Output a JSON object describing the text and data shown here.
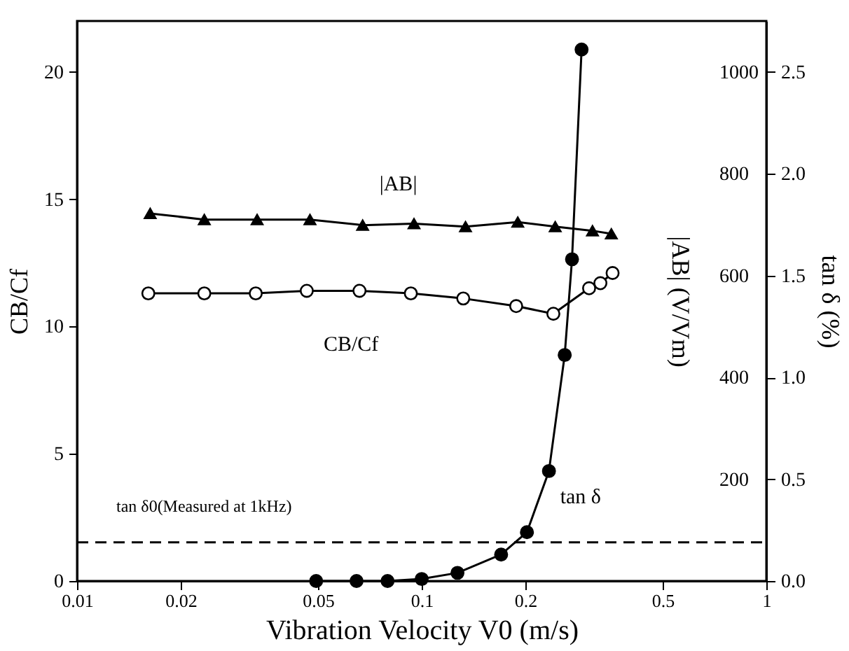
{
  "chart_data": {
    "type": "line",
    "xlabel": "Vibration Velocity V0 (m/s)",
    "ylabel": "CB/Cf",
    "y2label": "|AB| (V/Vm)",
    "y3label": "tan δ (%)",
    "log": "x",
    "grid": false,
    "line_style": "solid",
    "xlim": [
      0.01,
      1
    ],
    "xticks": [
      0.01,
      0.02,
      0.05,
      0.1,
      0.2,
      0.5,
      1
    ],
    "ylim": [
      0,
      22
    ],
    "yticks": [
      0,
      5,
      10,
      15,
      20
    ],
    "y2lim": [
      0,
      1100
    ],
    "y2ticks": [
      {
        "value": 0,
        "label": null
      },
      200,
      400,
      600,
      800,
      {
        "value": 1000,
        "label": "1000"
      }
    ],
    "y3lim": [
      0,
      2.75
    ],
    "y3ticks": [
      {
        "value": 0,
        "label": "0.0"
      },
      {
        "value": 0.5,
        "label": "0.5"
      },
      {
        "value": 1,
        "label": "1.0"
      },
      {
        "value": 1.5,
        "label": "1.5"
      },
      {
        "value": 2,
        "label": "2.0"
      },
      {
        "value": 2.5,
        "label": "2.5"
      }
    ],
    "series": [
      {
        "name": "|AB|",
        "axis": "y2",
        "color": "#000000",
        "marker": "triangle",
        "x": [
          0.0163,
          0.0234,
          0.0333,
          0.0474,
          0.0674,
          0.095,
          0.134,
          0.19,
          0.244,
          0.313,
          0.355
        ],
        "values": [
          722,
          710,
          710,
          710,
          699,
          702,
          696,
          705,
          696,
          688,
          682
        ]
      },
      {
        "name": "CB/Cf",
        "axis": "y",
        "color": "#000000",
        "marker": "circle",
        "x": [
          0.0161,
          0.0234,
          0.033,
          0.0464,
          0.066,
          0.093,
          0.132,
          0.188,
          0.241,
          0.306,
          0.33,
          0.358
        ],
        "values": [
          11.3,
          11.3,
          11.3,
          11.4,
          11.4,
          11.3,
          11.1,
          10.8,
          10.5,
          11.5,
          11.7,
          12.1
        ]
      },
      {
        "name": "tan δ",
        "axis": "y3",
        "color": "#000000",
        "marker": "circle",
        "x": [
          0.0494,
          0.0647,
          0.0796,
          0.1,
          0.127,
          0.17,
          0.202,
          0.234,
          0.26,
          0.273,
          0.291
        ],
        "values": [
          0,
          0,
          0,
          0.01,
          0.04,
          0.13,
          0.24,
          0.54,
          1.11,
          1.58,
          2.61
        ]
      }
    ],
    "ref_lines": [
      {
        "axis": "y3",
        "value": 0.19,
        "label": "tan δ0(Measured at 1kHz)",
        "line_style": "dashed",
        "color": "#000000"
      }
    ]
  }
}
